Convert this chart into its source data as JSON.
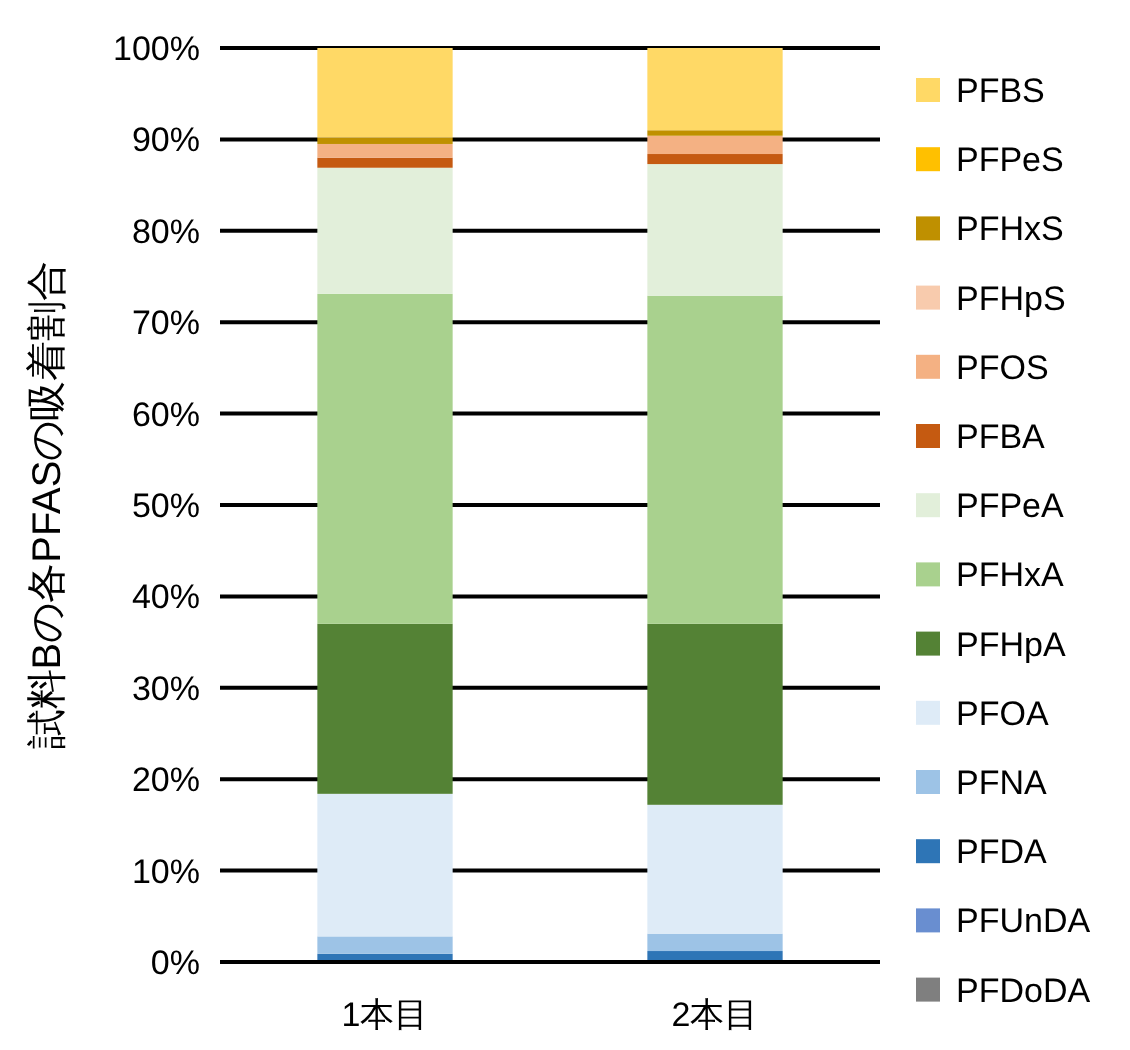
{
  "chart_data": {
    "type": "bar",
    "stacked": true,
    "ylabel": "試料Bの各PFASの吸着割合",
    "categories": [
      "1本目",
      "2本目"
    ],
    "series": [
      {
        "name": "PFDoDA",
        "color": "#7f7f7f",
        "values": [
          0,
          0
        ]
      },
      {
        "name": "PFUnDA",
        "color": "#698ed0",
        "values": [
          0,
          0
        ]
      },
      {
        "name": "PFDA",
        "color": "#2e75b6",
        "values": [
          0.9,
          1.2
        ]
      },
      {
        "name": "PFNA",
        "color": "#9dc3e6",
        "values": [
          1.9,
          1.9
        ]
      },
      {
        "name": "PFOA",
        "color": "#deebf7",
        "values": [
          15.6,
          14.1
        ]
      },
      {
        "name": "PFHpA",
        "color": "#548235",
        "values": [
          18.6,
          19.8
        ]
      },
      {
        "name": "PFHxA",
        "color": "#a9d18e",
        "values": [
          36.1,
          35.9
        ]
      },
      {
        "name": "PFPeA",
        "color": "#e2efda",
        "values": [
          13.8,
          14.4
        ]
      },
      {
        "name": "PFBA",
        "color": "#c55a11",
        "values": [
          1.1,
          1.1
        ]
      },
      {
        "name": "PFOS",
        "color": "#f4b183",
        "values": [
          1.5,
          2.0
        ]
      },
      {
        "name": "PFHpS",
        "color": "#f8cbad",
        "values": [
          null,
          null
        ]
      },
      {
        "name": "PFHxS",
        "color": "#bf9000",
        "values": [
          0.7,
          0.6
        ]
      },
      {
        "name": "PFPeS",
        "color": "#ffc000",
        "values": [
          0,
          0
        ]
      },
      {
        "name": "PFBS",
        "color": "#ffd966",
        "values": [
          9.8,
          9.0
        ]
      }
    ],
    "ylim": [
      0,
      100
    ],
    "yticks": [
      {
        "value": 0,
        "label": "0%"
      },
      {
        "value": 10,
        "label": "10%"
      },
      {
        "value": 20,
        "label": "20%"
      },
      {
        "value": 30,
        "label": "30%"
      },
      {
        "value": 40,
        "label": "40%"
      },
      {
        "value": 50,
        "label": "50%"
      },
      {
        "value": 60,
        "label": "60%"
      },
      {
        "value": 70,
        "label": "70%"
      },
      {
        "value": 80,
        "label": "80%"
      },
      {
        "value": 90,
        "label": "90%"
      },
      {
        "value": 100,
        "label": "100%"
      }
    ],
    "grid": "y",
    "legend": "right"
  }
}
